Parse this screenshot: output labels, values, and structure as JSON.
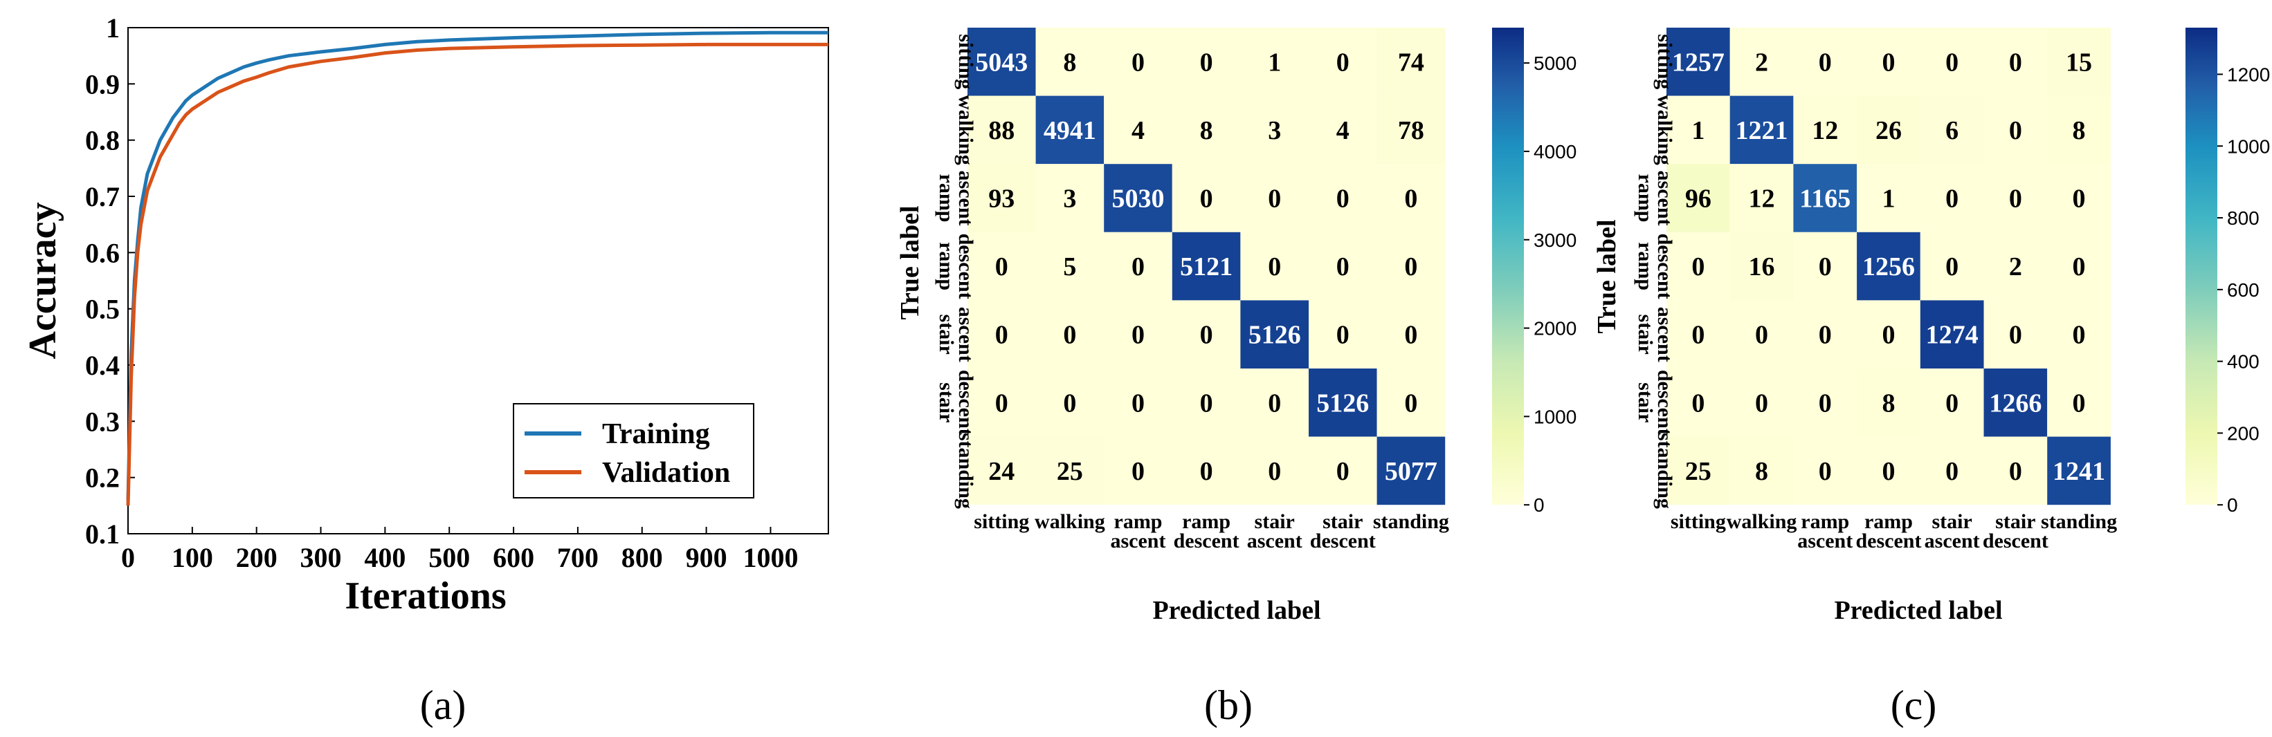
{
  "panel_labels": [
    "(a)",
    "(b)",
    "(c)"
  ],
  "chart_data": [
    {
      "type": "line",
      "panel": "(a)",
      "title": "",
      "xlabel": "Iterations",
      "ylabel": "Accuracy",
      "xlim": [
        0,
        1090
      ],
      "ylim": [
        0.1,
        1.0
      ],
      "xticks": [
        0,
        100,
        200,
        300,
        400,
        500,
        600,
        700,
        800,
        900,
        1000
      ],
      "xtick_labels": [
        "0",
        "100",
        "200",
        "300",
        "400",
        "500",
        "600",
        "700",
        "800",
        "900",
        "1000"
      ],
      "yticks": [
        0.1,
        0.2,
        0.3,
        0.4,
        0.5,
        0.6,
        0.7,
        0.8,
        0.9,
        1.0
      ],
      "ytick_labels": [
        "0.1",
        "0.2",
        "0.3",
        "0.4",
        "0.5",
        "0.6",
        "0.7",
        "0.8",
        "0.9",
        "1"
      ],
      "legend_position": "bottom-right",
      "series": [
        {
          "name": "Training",
          "color": "#1f77b4",
          "x": [
            0,
            5,
            10,
            15,
            20,
            30,
            40,
            50,
            60,
            70,
            80,
            90,
            100,
            120,
            140,
            160,
            180,
            200,
            220,
            250,
            300,
            350,
            400,
            450,
            500,
            600,
            700,
            800,
            900,
            1000,
            1090
          ],
          "y": [
            0.16,
            0.42,
            0.55,
            0.62,
            0.68,
            0.74,
            0.77,
            0.8,
            0.82,
            0.84,
            0.855,
            0.87,
            0.88,
            0.895,
            0.91,
            0.92,
            0.93,
            0.937,
            0.943,
            0.95,
            0.957,
            0.963,
            0.97,
            0.975,
            0.978,
            0.982,
            0.985,
            0.988,
            0.99,
            0.991,
            0.991
          ]
        },
        {
          "name": "Validation",
          "color": "#d95319",
          "x": [
            0,
            5,
            10,
            15,
            20,
            30,
            40,
            50,
            60,
            70,
            80,
            90,
            100,
            120,
            140,
            160,
            180,
            200,
            220,
            250,
            300,
            350,
            400,
            450,
            500,
            600,
            700,
            800,
            900,
            1000,
            1090
          ],
          "y": [
            0.15,
            0.38,
            0.52,
            0.6,
            0.65,
            0.71,
            0.74,
            0.77,
            0.79,
            0.81,
            0.83,
            0.845,
            0.855,
            0.87,
            0.885,
            0.895,
            0.905,
            0.912,
            0.92,
            0.93,
            0.94,
            0.947,
            0.955,
            0.96,
            0.963,
            0.966,
            0.968,
            0.969,
            0.97,
            0.97,
            0.97
          ]
        }
      ]
    },
    {
      "type": "heatmap",
      "panel": "(b)",
      "xlabel": "Predicted label",
      "ylabel": "True label",
      "labels": [
        "sitting",
        "walking",
        "ramp ascent",
        "ramp descent",
        "stair ascent",
        "stair descent",
        "standing"
      ],
      "values": [
        [
          5043,
          8,
          0,
          0,
          1,
          0,
          74
        ],
        [
          88,
          4941,
          4,
          8,
          3,
          4,
          78
        ],
        [
          93,
          3,
          5030,
          0,
          0,
          0,
          0
        ],
        [
          0,
          5,
          0,
          5121,
          0,
          0,
          0
        ],
        [
          0,
          0,
          0,
          0,
          5126,
          0,
          0
        ],
        [
          0,
          0,
          0,
          0,
          0,
          5126,
          0
        ],
        [
          24,
          25,
          0,
          0,
          0,
          0,
          5077
        ]
      ],
      "colorbar_ticks": [
        0,
        1000,
        2000,
        3000,
        4000,
        5000
      ],
      "colorbar_tick_labels": [
        "0",
        "1000",
        "2000",
        "3000",
        "4000",
        "5000"
      ],
      "colorbar_max": 5400
    },
    {
      "type": "heatmap",
      "panel": "(c)",
      "xlabel": "Predicted label",
      "ylabel": "True label",
      "labels": [
        "sitting",
        "walking",
        "ramp ascent",
        "ramp descent",
        "stair ascent",
        "stair descent",
        "standing"
      ],
      "values": [
        [
          1257,
          2,
          0,
          0,
          0,
          0,
          15
        ],
        [
          1,
          1221,
          12,
          26,
          6,
          0,
          8
        ],
        [
          96,
          12,
          1165,
          1,
          0,
          0,
          0
        ],
        [
          0,
          16,
          0,
          1256,
          0,
          2,
          0
        ],
        [
          0,
          0,
          0,
          0,
          1274,
          0,
          0
        ],
        [
          0,
          0,
          0,
          8,
          0,
          1266,
          0
        ],
        [
          25,
          8,
          0,
          0,
          0,
          0,
          1241
        ]
      ],
      "colorbar_ticks": [
        0,
        200,
        400,
        600,
        800,
        1000,
        1200
      ],
      "colorbar_tick_labels": [
        "0",
        "200",
        "400",
        "600",
        "800",
        "1000",
        "1200"
      ],
      "colorbar_max": 1330
    }
  ]
}
